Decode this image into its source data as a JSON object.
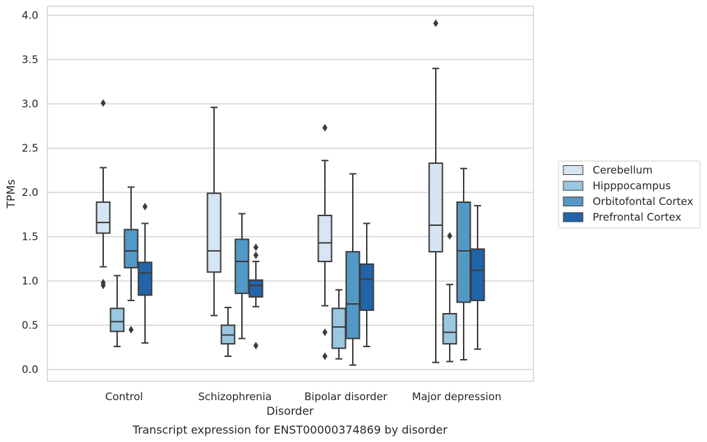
{
  "chart_data": {
    "type": "box",
    "caption": "Transcript expression for ENST00000374869 by disorder",
    "xlabel": "Disorder",
    "ylabel": "TPMs",
    "ylim": [
      -0.13,
      4.1
    ],
    "yticks": [
      "0.0",
      "0.5",
      "1.0",
      "1.5",
      "2.0",
      "2.5",
      "3.0",
      "3.5",
      "4.0"
    ],
    "grid": "horizontal",
    "legend_position": "right",
    "categories": [
      "Control",
      "Schizophrenia",
      "Bipolar disorder",
      "Major depression"
    ],
    "series": [
      {
        "name": "Cerebellum",
        "color": "#d6e5f4",
        "boxes": [
          {
            "whisker_low": 1.16,
            "q1": 1.54,
            "median": 1.66,
            "q3": 1.89,
            "whisker_high": 2.28,
            "outliers": [
              3.01,
              0.98,
              0.95
            ]
          },
          {
            "whisker_low": 0.61,
            "q1": 1.1,
            "median": 1.34,
            "q3": 1.99,
            "whisker_high": 2.96,
            "outliers": []
          },
          {
            "whisker_low": 0.72,
            "q1": 1.22,
            "median": 1.43,
            "q3": 1.74,
            "whisker_high": 2.36,
            "outliers": [
              2.73,
              0.42,
              0.15
            ]
          },
          {
            "whisker_low": 0.08,
            "q1": 1.33,
            "median": 1.63,
            "q3": 2.33,
            "whisker_high": 3.4,
            "outliers": [
              3.91
            ]
          }
        ]
      },
      {
        "name": "Hipppocampus",
        "color": "#9ac7e0",
        "boxes": [
          {
            "whisker_low": 0.26,
            "q1": 0.43,
            "median": 0.54,
            "q3": 0.69,
            "whisker_high": 1.06,
            "outliers": []
          },
          {
            "whisker_low": 0.15,
            "q1": 0.29,
            "median": 0.39,
            "q3": 0.5,
            "whisker_high": 0.7,
            "outliers": []
          },
          {
            "whisker_low": 0.12,
            "q1": 0.24,
            "median": 0.48,
            "q3": 0.69,
            "whisker_high": 0.9,
            "outliers": []
          },
          {
            "whisker_low": 0.09,
            "q1": 0.29,
            "median": 0.42,
            "q3": 0.63,
            "whisker_high": 0.96,
            "outliers": [
              1.51
            ]
          }
        ]
      },
      {
        "name": "Orbitofontal Cortex",
        "color": "#5399c6",
        "boxes": [
          {
            "whisker_low": 0.78,
            "q1": 1.15,
            "median": 1.34,
            "q3": 1.58,
            "whisker_high": 2.06,
            "outliers": [
              0.45
            ]
          },
          {
            "whisker_low": 0.35,
            "q1": 0.86,
            "median": 1.22,
            "q3": 1.47,
            "whisker_high": 1.76,
            "outliers": []
          },
          {
            "whisker_low": 0.05,
            "q1": 0.35,
            "median": 0.74,
            "q3": 1.33,
            "whisker_high": 2.21,
            "outliers": []
          },
          {
            "whisker_low": 0.11,
            "q1": 0.76,
            "median": 1.34,
            "q3": 1.89,
            "whisker_high": 2.27,
            "outliers": []
          }
        ]
      },
      {
        "name": "Prefrontal Cortex",
        "color": "#2264a9",
        "boxes": [
          {
            "whisker_low": 0.3,
            "q1": 0.84,
            "median": 1.09,
            "q3": 1.21,
            "whisker_high": 1.65,
            "outliers": [
              1.84
            ]
          },
          {
            "whisker_low": 0.71,
            "q1": 0.82,
            "median": 0.95,
            "q3": 1.01,
            "whisker_high": 1.22,
            "outliers": [
              1.38,
              1.29,
              0.27
            ]
          },
          {
            "whisker_low": 0.26,
            "q1": 0.67,
            "median": 1.02,
            "q3": 1.19,
            "whisker_high": 1.65,
            "outliers": []
          },
          {
            "whisker_low": 0.23,
            "q1": 0.78,
            "median": 1.12,
            "q3": 1.36,
            "whisker_high": 1.85,
            "outliers": []
          }
        ]
      }
    ]
  }
}
